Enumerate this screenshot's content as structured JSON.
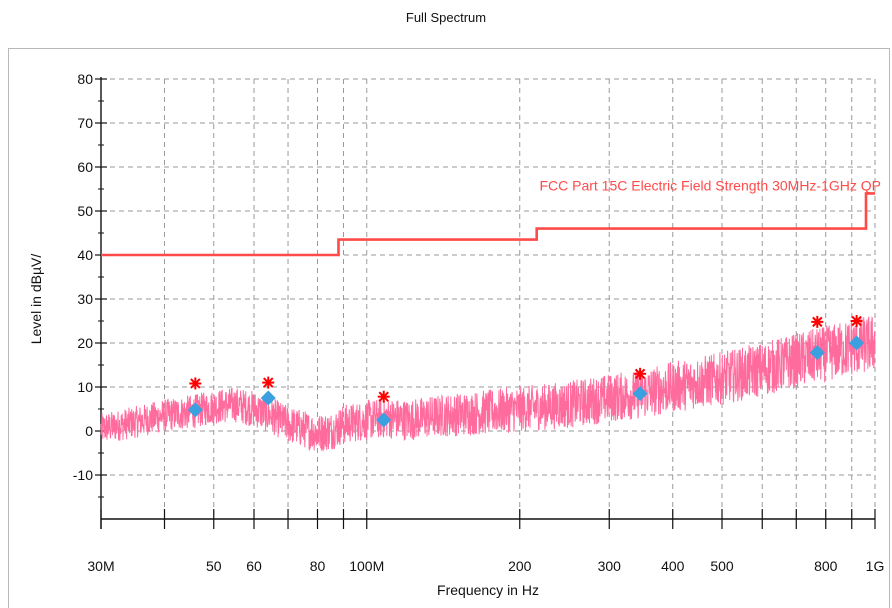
{
  "chart_data": {
    "type": "line",
    "title": "Full Spectrum",
    "xlabel": "Frequency in Hz",
    "ylabel": "Level in dBµV/",
    "x_scale": "log",
    "xlim": [
      30,
      1000
    ],
    "ylim": [
      -20,
      80
    ],
    "x_unit": "MHz",
    "x_ticks": [
      {
        "value": 30,
        "label": "30M"
      },
      {
        "value": 50,
        "label": "50"
      },
      {
        "value": 60,
        "label": "60"
      },
      {
        "value": 80,
        "label": "80"
      },
      {
        "value": 100,
        "label": "100M"
      },
      {
        "value": 200,
        "label": "200"
      },
      {
        "value": 300,
        "label": "300"
      },
      {
        "value": 400,
        "label": "400"
      },
      {
        "value": 500,
        "label": "500"
      },
      {
        "value": 800,
        "label": "800"
      },
      {
        "value": 1000,
        "label": "1G"
      }
    ],
    "x_minor_ticks": [
      40,
      70,
      90,
      600,
      700,
      900
    ],
    "y_ticks": [
      {
        "value": -10,
        "label": "-10"
      },
      {
        "value": 0,
        "label": "0"
      },
      {
        "value": 10,
        "label": "10"
      },
      {
        "value": 20,
        "label": "20"
      },
      {
        "value": 30,
        "label": "30"
      },
      {
        "value": 40,
        "label": "40"
      },
      {
        "value": 50,
        "label": "50"
      },
      {
        "value": 60,
        "label": "60"
      },
      {
        "value": 70,
        "label": "70"
      },
      {
        "value": 80,
        "label": "80"
      }
    ],
    "grid": true,
    "limit_line": {
      "name": "FCC Part 15C Electric Field Strength 30MHz-1GHz QP",
      "color": "#ff4a4a",
      "steps": [
        {
          "x_start": 30,
          "x_end": 88,
          "y": 40.0
        },
        {
          "x_start": 88,
          "x_end": 216,
          "y": 43.5
        },
        {
          "x_start": 216,
          "x_end": 960,
          "y": 46.0
        },
        {
          "x_start": 960,
          "x_end": 1000,
          "y": 54.0
        }
      ]
    },
    "spectrum": {
      "color": "#ff6b9d",
      "x": [
        30,
        35,
        40,
        46,
        50,
        55,
        60,
        65,
        70,
        75,
        80,
        85,
        90,
        100,
        110,
        120,
        140,
        160,
        180,
        200,
        250,
        300,
        350,
        400,
        500,
        600,
        700,
        800,
        900,
        1000
      ],
      "y": [
        0.5,
        2.0,
        3.5,
        4.5,
        5.5,
        6.0,
        5.0,
        3.5,
        1.5,
        0.5,
        -0.5,
        0.0,
        1.5,
        2.5,
        3.0,
        2.5,
        3.5,
        4.0,
        4.5,
        5.0,
        6.0,
        7.5,
        8.5,
        10.0,
        12.0,
        14.0,
        16.0,
        17.5,
        19.0,
        20.0
      ],
      "noise_amplitude": 3.5
    },
    "peaks": {
      "color": "#ff0000",
      "x": [
        46,
        64,
        108,
        345,
        770,
        920
      ],
      "y": [
        10.8,
        11.0,
        7.8,
        13.0,
        24.8,
        25.0
      ]
    },
    "quasi_peaks": {
      "color": "#3aa0e0",
      "x": [
        46,
        64,
        108,
        345,
        770,
        920
      ],
      "y": [
        4.8,
        7.5,
        2.5,
        8.5,
        17.8,
        20.0
      ]
    }
  }
}
